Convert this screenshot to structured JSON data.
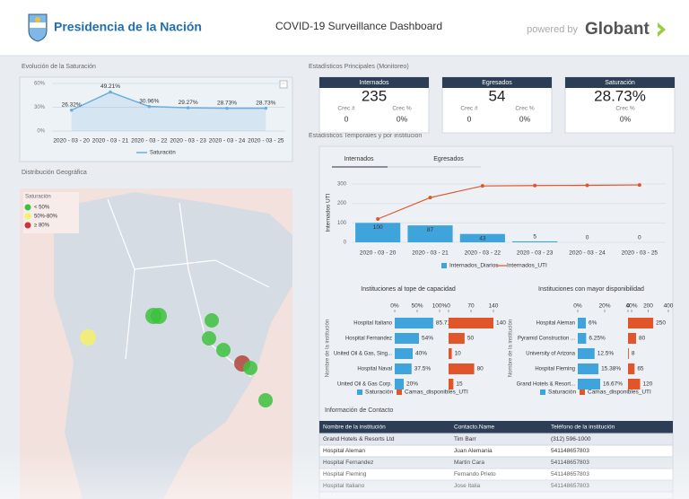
{
  "header": {
    "org": "Presidencia de la Nación",
    "title": "COVID-19 Surveillance Dashboard",
    "powered_by": "powered by",
    "brand": "Globant"
  },
  "sections": {
    "saturation": "Evolución de la Saturación",
    "main_stats": "Estadísticos Principales (Monitoreo)",
    "temporal": "Estadísticos Temporales y por institución",
    "geo": "Distribución Geográfica",
    "contact": "Información de Contacto"
  },
  "kpis": [
    {
      "title": "Internados",
      "value": "235",
      "growth_labels": [
        "Crec #",
        "Crec %"
      ],
      "growth_values": [
        "0",
        "0%"
      ]
    },
    {
      "title": "Egresados",
      "value": "54",
      "growth_labels": [
        "Crec #",
        "Crec %"
      ],
      "growth_values": [
        "0",
        "0%"
      ]
    },
    {
      "title": "Saturación",
      "value": "28.73%",
      "growth_labels": [
        "Crec %"
      ],
      "growth_values": [
        "0%"
      ]
    }
  ],
  "tabs": [
    "Internados",
    "Egresados"
  ],
  "map": {
    "legend_title": "Saturación",
    "legend": [
      "< 50%",
      "50%-80%",
      "≥ 80%"
    ]
  },
  "table": {
    "headers": [
      "Nombre de la institución",
      "Contacto.Name",
      "Teléfono de la institución"
    ],
    "rows": [
      [
        "Grand Hotels & Resorts Ltd",
        "Tim Barr",
        "(312) 596-1000"
      ],
      [
        "Hospital Aleman",
        "Juan Alemania",
        "541148657803"
      ],
      [
        "Hospital Fernandez",
        "Martin Cara",
        "541148657803"
      ],
      [
        "Hospital Fleming",
        "Fernando Prieto",
        "541148657803"
      ],
      [
        "Hospital Italiano",
        "Jose Italia",
        "541148657803"
      ]
    ]
  },
  "chart_data": [
    {
      "type": "line",
      "categories": [
        "2020 - 03 - 20",
        "2020 - 03 - 21",
        "2020 - 03 - 22",
        "2020 - 03 - 23",
        "2020 - 03 - 24",
        "2020 - 03 - 25"
      ],
      "series": [
        {
          "name": "Saturación",
          "color": "#6aaee0",
          "values": [
            26.32,
            49.21,
            30.96,
            29.27,
            28.73,
            28.73
          ],
          "value_labels": [
            "26.32%",
            "49.21%",
            "30.96%",
            "29.27%",
            "28.73%",
            "28.73%"
          ]
        }
      ],
      "ylim": [
        0,
        60
      ],
      "yticks": [
        {
          "value": 0,
          "label": "0%"
        },
        {
          "value": 30,
          "label": "30%"
        },
        {
          "value": 60,
          "label": "60%"
        }
      ]
    },
    {
      "type": "combo",
      "ylabel": "Internados UTI",
      "categories": [
        "2020 - 03 - 20",
        "2020 - 03 - 21",
        "2020 - 03 - 22",
        "2020 - 03 - 23",
        "2020 - 03 - 24",
        "2020 - 03 - 25"
      ],
      "series": [
        {
          "name": "Internados_Diarios",
          "kind": "bar",
          "color": "#3fa3dc",
          "values": [
            100,
            87,
            43,
            5,
            0,
            0
          ]
        },
        {
          "name": "Internados_UTI",
          "kind": "line",
          "color": "#e0562a",
          "values": [
            120,
            230,
            290,
            292,
            293,
            295
          ]
        }
      ],
      "ylim": [
        0,
        300
      ],
      "yticks": [
        0,
        100,
        200,
        300
      ]
    },
    {
      "type": "hbar",
      "title": "Instituciones al tope de capacidad",
      "ylabel": "Nombre de la institución",
      "categories": [
        "Hospital Italiano",
        "Hospital Fernandez",
        "United Oil & Gas, Sing...",
        "Hospital Naval",
        "United Oil & Gas Corp."
      ],
      "series": [
        {
          "name": "Saturación",
          "color": "#3fa3dc",
          "values": [
            85.71,
            54,
            40,
            37.5,
            20
          ],
          "value_labels": [
            "85.71%",
            "54%",
            "40%",
            "37.5%",
            "20%"
          ]
        },
        {
          "name": "Camas_disponibles_UTI",
          "color": "#e0562a",
          "axis": "x2",
          "values": [
            140,
            50,
            10,
            80,
            15
          ]
        }
      ],
      "xlim": [
        0,
        100
      ],
      "xticks": [
        {
          "value": 0,
          "label": "0%"
        },
        {
          "value": 50,
          "label": "50%"
        },
        {
          "value": 100,
          "label": "100%"
        }
      ],
      "x2lim": [
        0,
        140
      ],
      "x2ticks": [
        0,
        70,
        140
      ]
    },
    {
      "type": "hbar",
      "title": "Instituciones con mayor disponibilidad",
      "ylabel": "Nombre de la institución",
      "categories": [
        "Hospital Aleman",
        "Pyramid Construction ...",
        "University of Arizona",
        "Hospital Fleming",
        "Grand Hotels & Resort..."
      ],
      "series": [
        {
          "name": "Saturación",
          "color": "#3fa3dc",
          "values": [
            6,
            6.25,
            12.5,
            15.38,
            16.67
          ],
          "value_labels": [
            "6%",
            "6.25%",
            "12.5%",
            "15.38%",
            "16.67%"
          ]
        },
        {
          "name": "Camas_disponibles_UTI",
          "color": "#e0562a",
          "axis": "x2",
          "values": [
            250,
            80,
            8,
            65,
            120
          ]
        }
      ],
      "xlim": [
        0,
        40
      ],
      "xticks": [
        {
          "value": 0,
          "label": "0%"
        },
        {
          "value": 20,
          "label": "20%"
        },
        {
          "value": 40,
          "label": "40%"
        }
      ],
      "x2lim": [
        0,
        400
      ],
      "x2ticks": [
        0,
        200,
        400
      ]
    }
  ]
}
